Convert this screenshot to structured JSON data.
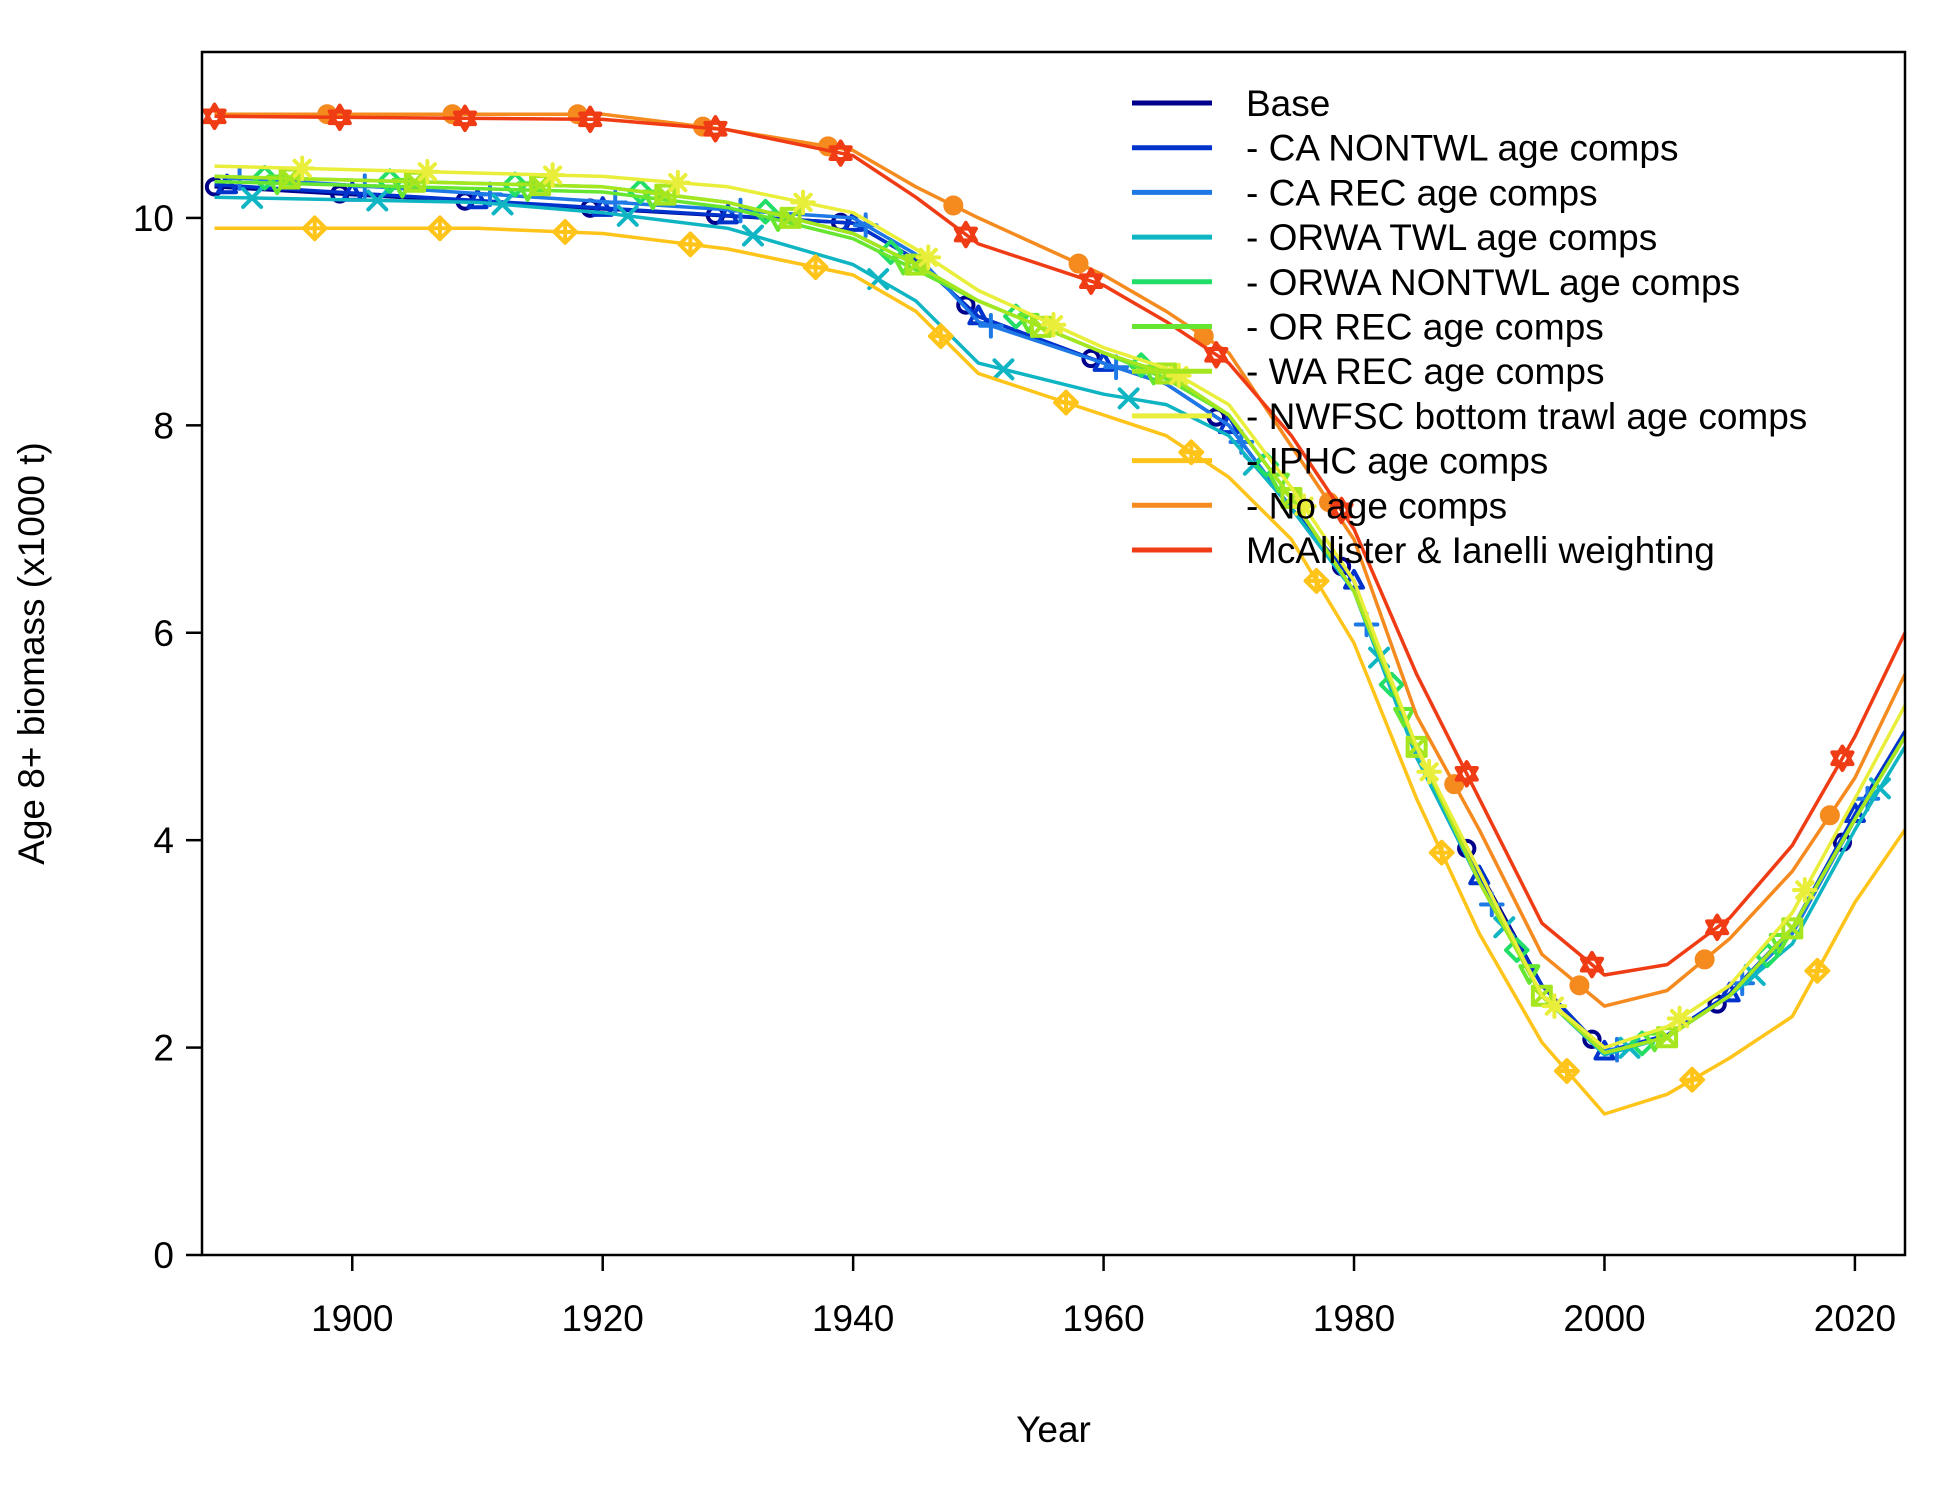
{
  "chart_data": {
    "type": "line",
    "xlabel": "Year",
    "ylabel": "Age 8+ biomass (x1000 t)",
    "xlim": [
      1888,
      2024
    ],
    "ylim": [
      0,
      11.6
    ],
    "x_ticks": [
      1900,
      1920,
      1940,
      1960,
      1980,
      2000,
      2020
    ],
    "y_ticks": [
      0,
      2,
      4,
      6,
      8,
      10
    ],
    "legend_position": "top-right",
    "grid": false,
    "series": [
      {
        "name": "Base",
        "color": "#00008B",
        "marker": "circle",
        "x": [
          1889,
          1940,
          1945,
          1950,
          1960,
          1965,
          1970,
          1975,
          1980,
          1985,
          1990,
          1995,
          2000,
          2005,
          2010,
          2015,
          2020,
          2024
        ],
        "y": [
          10.3,
          9.95,
          9.6,
          9.05,
          8.6,
          8.4,
          8.0,
          7.2,
          6.5,
          4.8,
          3.7,
          2.6,
          1.95,
          2.1,
          2.5,
          3.1,
          4.2,
          5.0
        ]
      },
      {
        "name": "- CA NONTWL age comps",
        "color": "#0033CC",
        "marker": "triangle",
        "x": [
          1889,
          1940,
          1945,
          1950,
          1960,
          1965,
          1970,
          1975,
          1980,
          1985,
          1990,
          1995,
          2000,
          2005,
          2010,
          2015,
          2020,
          2024
        ],
        "y": [
          10.32,
          9.95,
          9.6,
          9.05,
          8.6,
          8.4,
          8.0,
          7.2,
          6.5,
          4.8,
          3.65,
          2.6,
          1.96,
          2.12,
          2.52,
          3.15,
          4.25,
          5.05
        ]
      },
      {
        "name": "- CA REC age comps",
        "color": "#1E78E6",
        "marker": "plus",
        "x": [
          1889,
          1940,
          1945,
          1950,
          1960,
          1965,
          1970,
          1975,
          1980,
          1985,
          1990,
          1995,
          2000,
          2005,
          2010,
          2015,
          2020,
          2024
        ],
        "y": [
          10.4,
          10.0,
          9.65,
          9.0,
          8.6,
          8.4,
          8.0,
          7.2,
          6.4,
          4.8,
          3.6,
          2.5,
          1.95,
          2.1,
          2.5,
          3.1,
          4.2,
          5.0
        ]
      },
      {
        "name": "- ORWA TWL age comps",
        "color": "#10B5C4",
        "marker": "cross",
        "x": [
          1889,
          1910,
          1920,
          1930,
          1940,
          1945,
          1950,
          1960,
          1965,
          1970,
          1975,
          1980,
          1985,
          1990,
          1995,
          2000,
          2005,
          2010,
          2015,
          2020,
          2024
        ],
        "y": [
          10.2,
          10.15,
          10.05,
          9.9,
          9.55,
          9.2,
          8.6,
          8.3,
          8.2,
          7.9,
          7.2,
          6.4,
          4.8,
          3.6,
          2.5,
          1.93,
          2.1,
          2.5,
          3.0,
          4.1,
          4.9
        ]
      },
      {
        "name": "- ORWA NONTWL age comps",
        "color": "#22DD66",
        "marker": "diamond",
        "x": [
          1889,
          1920,
          1930,
          1940,
          1945,
          1950,
          1960,
          1965,
          1970,
          1975,
          1980,
          1985,
          1990,
          1995,
          2000,
          2005,
          2010,
          2015,
          2020,
          2024
        ],
        "y": [
          10.4,
          10.3,
          10.15,
          9.85,
          9.55,
          9.2,
          8.7,
          8.5,
          8.1,
          7.3,
          6.4,
          4.9,
          3.6,
          2.5,
          1.95,
          2.1,
          2.5,
          3.15,
          4.2,
          5.0
        ]
      },
      {
        "name": "- OR REC age comps",
        "color": "#66E630",
        "marker": "triangle-down",
        "x": [
          1889,
          1920,
          1930,
          1940,
          1945,
          1950,
          1960,
          1965,
          1970,
          1975,
          1980,
          1985,
          1990,
          1995,
          2000,
          2005,
          2010,
          2015,
          2020,
          2024
        ],
        "y": [
          10.35,
          10.25,
          10.1,
          9.8,
          9.5,
          9.2,
          8.7,
          8.45,
          8.1,
          7.3,
          6.4,
          4.9,
          3.6,
          2.5,
          1.95,
          2.1,
          2.5,
          3.15,
          4.2,
          5.0
        ]
      },
      {
        "name": "- WA REC age comps",
        "color": "#A5E61E",
        "marker": "square-x",
        "x": [
          1889,
          1920,
          1930,
          1940,
          1945,
          1950,
          1960,
          1965,
          1970,
          1975,
          1980,
          1985,
          1990,
          1995,
          2000,
          2005,
          2010,
          2015,
          2020,
          2024
        ],
        "y": [
          10.4,
          10.3,
          10.15,
          9.85,
          9.55,
          9.2,
          8.7,
          8.5,
          8.1,
          7.3,
          6.4,
          4.9,
          3.6,
          2.5,
          1.95,
          2.1,
          2.5,
          3.15,
          4.2,
          5.0
        ]
      },
      {
        "name": "- NWFSC bottom trawl age comps",
        "color": "#E8EE3A",
        "marker": "asterisk",
        "x": [
          1889,
          1920,
          1930,
          1940,
          1945,
          1950,
          1960,
          1965,
          1970,
          1975,
          1980,
          1985,
          1990,
          1995,
          2000,
          2005,
          2010,
          2015,
          2020,
          2024
        ],
        "y": [
          10.5,
          10.4,
          10.3,
          10.05,
          9.7,
          9.3,
          8.75,
          8.55,
          8.2,
          7.4,
          6.5,
          4.9,
          3.7,
          2.5,
          2.0,
          2.2,
          2.6,
          3.3,
          4.4,
          5.3
        ]
      },
      {
        "name": "- IPHC age comps",
        "color": "#FFC41A",
        "marker": "diamond-plus",
        "x": [
          1889,
          1910,
          1920,
          1930,
          1940,
          1945,
          1950,
          1960,
          1965,
          1970,
          1975,
          1980,
          1985,
          1990,
          1995,
          2000,
          2005,
          2010,
          2015,
          2020,
          2024
        ],
        "y": [
          9.9,
          9.9,
          9.85,
          9.7,
          9.45,
          9.1,
          8.5,
          8.1,
          7.9,
          7.5,
          6.9,
          5.9,
          4.4,
          3.1,
          2.05,
          1.36,
          1.55,
          1.9,
          2.3,
          3.4,
          4.1
        ]
      },
      {
        "name": "- No age comps",
        "color": "#F58A1F",
        "marker": "filled-circle",
        "x": [
          1889,
          1920,
          1930,
          1940,
          1945,
          1950,
          1960,
          1965,
          1970,
          1975,
          1980,
          1985,
          1990,
          1995,
          2000,
          2005,
          2010,
          2015,
          2020,
          2024
        ],
        "y": [
          11.0,
          11.0,
          10.85,
          10.65,
          10.3,
          10.0,
          9.45,
          9.1,
          8.7,
          7.8,
          6.9,
          5.2,
          4.1,
          2.9,
          2.4,
          2.55,
          3.05,
          3.7,
          4.6,
          5.6
        ]
      },
      {
        "name": "McAllister & Ianelli weighting",
        "color": "#F03C14",
        "marker": "star",
        "x": [
          1889,
          1920,
          1930,
          1940,
          1945,
          1950,
          1960,
          1965,
          1970,
          1975,
          1980,
          1985,
          1990,
          1995,
          2000,
          2005,
          2010,
          2015,
          2020,
          2024
        ],
        "y": [
          10.98,
          10.95,
          10.85,
          10.6,
          10.2,
          9.75,
          9.35,
          9.0,
          8.6,
          7.9,
          7.0,
          5.6,
          4.4,
          3.2,
          2.7,
          2.8,
          3.25,
          3.95,
          5.0,
          6.0
        ]
      }
    ]
  }
}
